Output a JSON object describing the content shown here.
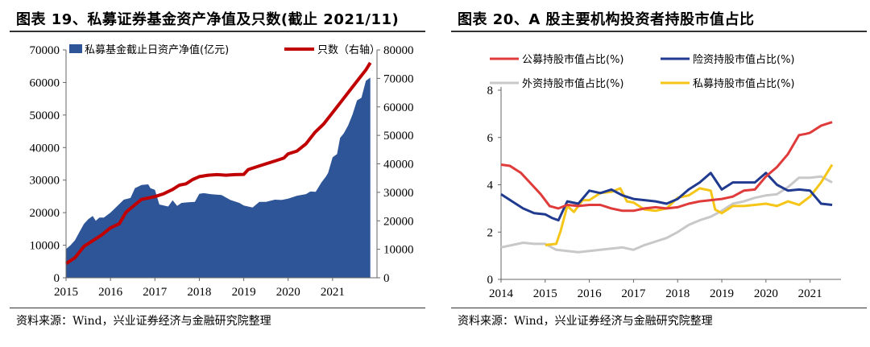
{
  "charts": [
    {
      "title": "图表 19、私募证券基金资产净值及只数(截止 2021/11)",
      "source": "资料来源：Wind，兴业证券经济与金融研究院整理"
    },
    {
      "title": "图表 20、A 股主要机构投资者持股市值占比",
      "source": "资料来源：Wind，兴业证券经济与金融研究院整理"
    }
  ],
  "chart_data": [
    {
      "type": "area",
      "title": "图表 19、私募证券基金资产净值及只数(截止 2021/11)",
      "x_ticks": [
        "2015",
        "2016",
        "2017",
        "2018",
        "2019",
        "2020",
        "2021"
      ],
      "left_axis": {
        "ylim": [
          0,
          70000
        ],
        "ticks": [
          0,
          10000,
          20000,
          30000,
          40000,
          50000,
          60000,
          70000
        ]
      },
      "right_axis": {
        "ylim": [
          0,
          80000
        ],
        "ticks": [
          0,
          10000,
          20000,
          30000,
          40000,
          50000,
          60000,
          70000,
          80000
        ]
      },
      "legend_position": "top",
      "colors": {
        "area": "#2e5597",
        "line": "#c00000"
      },
      "series": [
        {
          "name": "私募基金截止日资产净值(亿元)",
          "axis": "left",
          "type": "area",
          "x": [
            2015.0,
            2015.1,
            2015.2,
            2015.3,
            2015.4,
            2015.5,
            2015.6,
            2015.67,
            2015.75,
            2015.85,
            2016.0,
            2016.15,
            2016.3,
            2016.45,
            2016.55,
            2016.7,
            2016.85,
            2016.9,
            2017.0,
            2017.1,
            2017.3,
            2017.4,
            2017.5,
            2017.6,
            2017.75,
            2017.9,
            2018.0,
            2018.1,
            2018.25,
            2018.5,
            2018.7,
            2018.9,
            2019.0,
            2019.2,
            2019.35,
            2019.5,
            2019.7,
            2019.85,
            2020.0,
            2020.2,
            2020.4,
            2020.5,
            2020.62,
            2020.75,
            2020.85,
            2020.9,
            2021.0,
            2021.1,
            2021.17,
            2021.25,
            2021.35,
            2021.45,
            2021.55,
            2021.65,
            2021.75,
            2021.85
          ],
          "values": [
            8800,
            10000,
            11500,
            14000,
            16500,
            18000,
            19000,
            17500,
            18500,
            18500,
            20000,
            22000,
            24000,
            24500,
            27500,
            28500,
            28700,
            27500,
            27000,
            22500,
            21900,
            23800,
            22100,
            23000,
            23200,
            23300,
            25800,
            26000,
            25700,
            25400,
            23900,
            23000,
            22200,
            21600,
            23300,
            23300,
            24000,
            23900,
            24300,
            25200,
            25700,
            26500,
            26400,
            29300,
            31100,
            32200,
            37000,
            38000,
            43000,
            44300,
            46800,
            50200,
            54500,
            55300,
            60500,
            61500
          ]
        },
        {
          "name": "只数（右轴）",
          "axis": "right",
          "type": "line",
          "x": [
            2015.0,
            2015.2,
            2015.4,
            2015.6,
            2015.8,
            2016.0,
            2016.2,
            2016.35,
            2016.5,
            2016.7,
            2016.85,
            2017.0,
            2017.2,
            2017.4,
            2017.55,
            2017.7,
            2017.85,
            2018.0,
            2018.2,
            2018.4,
            2018.6,
            2018.8,
            2019.0,
            2019.1,
            2019.3,
            2019.5,
            2019.7,
            2019.9,
            2020.0,
            2020.2,
            2020.4,
            2020.6,
            2020.8,
            2021.0,
            2021.2,
            2021.4,
            2021.6,
            2021.75,
            2021.85
          ],
          "values": [
            5000,
            7000,
            11000,
            13000,
            15000,
            17500,
            19000,
            23000,
            25000,
            27500,
            28000,
            28500,
            29500,
            31000,
            32500,
            33000,
            34500,
            35500,
            36000,
            36200,
            36000,
            36200,
            36300,
            38000,
            39000,
            40000,
            41000,
            42000,
            43500,
            44500,
            47000,
            51000,
            54000,
            58000,
            62000,
            66000,
            70000,
            73000,
            75500
          ]
        }
      ]
    },
    {
      "type": "line",
      "title": "图表 20、A 股主要机构投资者持股市值占比",
      "x_ticks": [
        "2014",
        "2015",
        "2016",
        "2017",
        "2018",
        "2019",
        "2020",
        "2021"
      ],
      "ylim": [
        0,
        8
      ],
      "y_ticks": [
        0,
        2,
        4,
        6,
        8
      ],
      "legend_position": "top",
      "series": [
        {
          "name": "公募持股市值占比(%)",
          "color": "#e03b3b",
          "x": [
            2014.0,
            2014.2,
            2014.45,
            2014.7,
            2014.9,
            2015.1,
            2015.3,
            2015.5,
            2015.75,
            2016.0,
            2016.25,
            2016.5,
            2016.75,
            2017.0,
            2017.25,
            2017.5,
            2017.75,
            2018.0,
            2018.25,
            2018.5,
            2018.75,
            2019.0,
            2019.25,
            2019.5,
            2019.75,
            2020.0,
            2020.25,
            2020.5,
            2020.75,
            2020.9,
            2021.0,
            2021.25,
            2021.5
          ],
          "values": [
            4.85,
            4.8,
            4.5,
            4.0,
            3.6,
            3.1,
            3.0,
            3.15,
            3.1,
            3.15,
            3.15,
            3.0,
            2.9,
            2.9,
            3.0,
            3.05,
            3.0,
            3.05,
            3.2,
            3.3,
            3.35,
            3.4,
            3.5,
            3.75,
            3.8,
            4.35,
            4.75,
            5.3,
            6.1,
            6.15,
            6.2,
            6.5,
            6.65
          ]
        },
        {
          "name": "险资持股市值占比(%)",
          "color": "#1f3a8f",
          "x": [
            2014.0,
            2014.25,
            2014.5,
            2014.75,
            2015.0,
            2015.15,
            2015.3,
            2015.5,
            2015.75,
            2016.0,
            2016.25,
            2016.5,
            2016.75,
            2017.0,
            2017.25,
            2017.5,
            2017.75,
            2018.0,
            2018.25,
            2018.5,
            2018.75,
            2019.0,
            2019.25,
            2019.5,
            2019.75,
            2020.0,
            2020.25,
            2020.5,
            2020.75,
            2021.0,
            2021.25,
            2021.5
          ],
          "values": [
            3.6,
            3.3,
            3.0,
            2.8,
            2.75,
            2.6,
            2.5,
            3.3,
            3.2,
            3.75,
            3.65,
            3.8,
            3.55,
            3.4,
            3.35,
            3.3,
            3.2,
            3.4,
            3.8,
            4.1,
            4.5,
            3.8,
            4.1,
            4.1,
            4.1,
            4.5,
            4.0,
            3.75,
            3.8,
            3.75,
            3.2,
            3.15
          ]
        },
        {
          "name": "外资持股市值占比(%)",
          "color": "#c8c8c8",
          "x": [
            2014.0,
            2014.25,
            2014.5,
            2014.75,
            2015.0,
            2015.25,
            2015.5,
            2015.75,
            2016.0,
            2016.25,
            2016.5,
            2016.75,
            2017.0,
            2017.25,
            2017.5,
            2017.75,
            2018.0,
            2018.25,
            2018.5,
            2018.75,
            2019.0,
            2019.25,
            2019.5,
            2019.75,
            2020.0,
            2020.25,
            2020.5,
            2020.75,
            2021.0,
            2021.25,
            2021.5
          ],
          "values": [
            1.35,
            1.45,
            1.55,
            1.5,
            1.5,
            1.25,
            1.2,
            1.15,
            1.2,
            1.25,
            1.3,
            1.35,
            1.25,
            1.45,
            1.6,
            1.75,
            2.0,
            2.3,
            2.5,
            2.65,
            2.9,
            3.2,
            3.3,
            3.45,
            3.55,
            3.6,
            3.9,
            4.3,
            4.3,
            4.35,
            4.1
          ]
        },
        {
          "name": "私募持股市值占比(%)",
          "color": "#f5c518",
          "x": [
            2015.0,
            2015.25,
            2015.35,
            2015.5,
            2015.65,
            2015.85,
            2016.0,
            2016.25,
            2016.5,
            2016.7,
            2016.85,
            2017.0,
            2017.25,
            2017.5,
            2017.75,
            2018.0,
            2018.25,
            2018.5,
            2018.75,
            2018.85,
            2019.0,
            2019.25,
            2019.5,
            2019.75,
            2020.0,
            2020.25,
            2020.5,
            2020.75,
            2021.0,
            2021.25,
            2021.5
          ],
          "values": [
            1.45,
            1.5,
            2.05,
            3.1,
            2.85,
            3.35,
            3.35,
            3.65,
            3.7,
            3.85,
            3.3,
            3.25,
            2.95,
            2.9,
            3.0,
            3.45,
            3.55,
            3.85,
            3.75,
            2.95,
            2.8,
            3.1,
            3.1,
            3.15,
            3.2,
            3.1,
            3.3,
            3.15,
            3.5,
            4.1,
            4.85
          ]
        }
      ]
    }
  ]
}
